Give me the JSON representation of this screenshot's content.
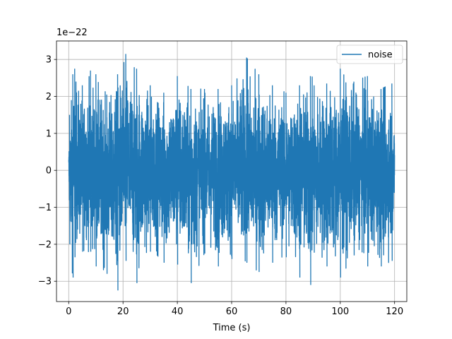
{
  "chart_data": {
    "type": "line",
    "xlabel": "Time (s)",
    "ylabel": "",
    "offset_text": "1e−22",
    "xlim": [
      -4.5,
      124.5
    ],
    "ylim": [
      -3.55e-22,
      3.5e-22
    ],
    "xticks": [
      0,
      20,
      40,
      60,
      80,
      100,
      120
    ],
    "xtick_labels": [
      "0",
      "20",
      "40",
      "60",
      "80",
      "100",
      "120"
    ],
    "yticks": [
      -3e-22,
      -2e-22,
      -1e-22,
      0,
      1e-22,
      2e-22,
      3e-22
    ],
    "ytick_labels": [
      "−3",
      "−2",
      "−1",
      "0",
      "1",
      "2",
      "3"
    ],
    "grid": true,
    "legend_position": "top-right",
    "series": [
      {
        "name": "noise",
        "color": "#1f77b4",
        "x_start": 0,
        "x_end": 120,
        "note_style": "dense random noise",
        "envelope": [
          {
            "x": 0,
            "ymax": 7e-23,
            "ymin": -6.5e-23
          },
          {
            "x": 0.3,
            "ymax": 1.5e-22,
            "ymin": -2e-22
          },
          {
            "x": 1.5,
            "ymax": 2.6e-22,
            "ymin": -2.9e-22
          },
          {
            "x": 2.2,
            "ymax": 2.75e-22,
            "ymin": -2.35e-22
          },
          {
            "x": 5,
            "ymax": 2.3e-22,
            "ymin": -2.2e-22
          },
          {
            "x": 8,
            "ymax": 2.7e-22,
            "ymin": -2.2e-22
          },
          {
            "x": 10,
            "ymax": 2.6e-22,
            "ymin": -2.6e-22
          },
          {
            "x": 14,
            "ymax": 2.05e-22,
            "ymin": -2.8e-22
          },
          {
            "x": 18,
            "ymax": 2.6e-22,
            "ymin": -3.25e-22
          },
          {
            "x": 21,
            "ymax": 3.15e-22,
            "ymin": -2.45e-22
          },
          {
            "x": 25,
            "ymax": 2.75e-22,
            "ymin": -3.05e-22
          },
          {
            "x": 30,
            "ymax": 2.3e-22,
            "ymin": -2.2e-22
          },
          {
            "x": 35,
            "ymax": 2.1e-22,
            "ymin": -2.5e-22
          },
          {
            "x": 40,
            "ymax": 2.55e-22,
            "ymin": -2.55e-22
          },
          {
            "x": 45,
            "ymax": 2.2e-22,
            "ymin": -3.05e-22
          },
          {
            "x": 50,
            "ymax": 2.2e-22,
            "ymin": -2.25e-22
          },
          {
            "x": 55,
            "ymax": 2.2e-22,
            "ymin": -2.6e-22
          },
          {
            "x": 60,
            "ymax": 2.3e-22,
            "ymin": -2.4e-22
          },
          {
            "x": 65.5,
            "ymax": 3.05e-22,
            "ymin": -2.5e-22
          },
          {
            "x": 70,
            "ymax": 2.6e-22,
            "ymin": -2.75e-22
          },
          {
            "x": 75,
            "ymax": 2.3e-22,
            "ymin": -2.5e-22
          },
          {
            "x": 80,
            "ymax": 2.1e-22,
            "ymin": -2.35e-22
          },
          {
            "x": 85,
            "ymax": 2.3e-22,
            "ymin": -2.9e-22
          },
          {
            "x": 89,
            "ymax": 2.55e-22,
            "ymin": -3.1e-22
          },
          {
            "x": 95,
            "ymax": 2.35e-22,
            "ymin": -2.6e-22
          },
          {
            "x": 100,
            "ymax": 2.75e-22,
            "ymin": -2.9e-22
          },
          {
            "x": 105,
            "ymax": 2.4e-22,
            "ymin": -2.3e-22
          },
          {
            "x": 110,
            "ymax": 2.55e-22,
            "ymin": -2.6e-22
          },
          {
            "x": 115,
            "ymax": 2.2e-22,
            "ymin": -2.6e-22
          },
          {
            "x": 119,
            "ymax": 2.35e-22,
            "ymin": -2.45e-22
          },
          {
            "x": 120,
            "ymax": 1.4e-22,
            "ymin": -1.9e-22
          }
        ]
      }
    ]
  }
}
